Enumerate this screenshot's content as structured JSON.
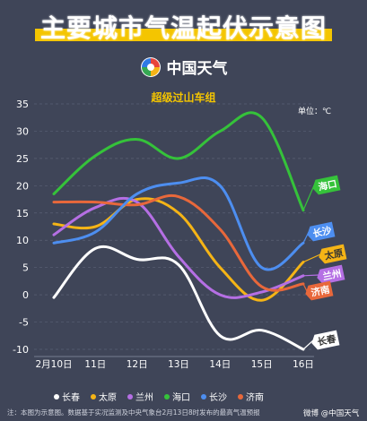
{
  "header": {
    "title": "主要城市气温起伏示意图",
    "brand": "中国天气",
    "subtitle": "超级过山车组",
    "unit": "单位：℃"
  },
  "colors": {
    "长春": "#ffffff",
    "太原": "#f5b416",
    "兰州": "#b56fe4",
    "海口": "#35c23a",
    "长沙": "#4d8ef0",
    "济南": "#e8683b"
  },
  "legend": [
    "长春",
    "太原",
    "兰州",
    "海口",
    "长沙",
    "济南"
  ],
  "end_labels": [
    "海口",
    "长沙",
    "太原",
    "兰州",
    "济南",
    "长春"
  ],
  "footer": {
    "note": "注：本图为示意图。数据基于实况监测及中央气象台2月13日8时发布的最高气温预报",
    "watermark": "微博 @中国天气"
  },
  "chart_data": {
    "type": "line",
    "title": "超级过山车组",
    "x": [
      "2月10日",
      "11日",
      "12日",
      "13日",
      "14日",
      "15日",
      "16日"
    ],
    "ylim": [
      -10,
      35
    ],
    "yticks": [
      -10,
      -5,
      0,
      5,
      10,
      15,
      20,
      25,
      30,
      35
    ],
    "grid": true,
    "series": [
      {
        "name": "长春",
        "values": [
          -0.5,
          8.5,
          6.5,
          5.5,
          -7.5,
          -6.5,
          -10
        ]
      },
      {
        "name": "太原",
        "values": [
          13,
          12.5,
          17.5,
          15,
          5,
          -1,
          6
        ]
      },
      {
        "name": "兰州",
        "values": [
          11,
          16,
          17,
          7,
          0,
          0.5,
          3.5
        ]
      },
      {
        "name": "海口",
        "values": [
          18.5,
          25.5,
          28.5,
          25,
          30,
          32.5,
          15.5
        ]
      },
      {
        "name": "长沙",
        "values": [
          9.5,
          11.5,
          18.5,
          20.5,
          20,
          5,
          9.5
        ]
      },
      {
        "name": "济南",
        "values": [
          17,
          17,
          16.5,
          18,
          12,
          1.5,
          2
        ]
      }
    ]
  }
}
